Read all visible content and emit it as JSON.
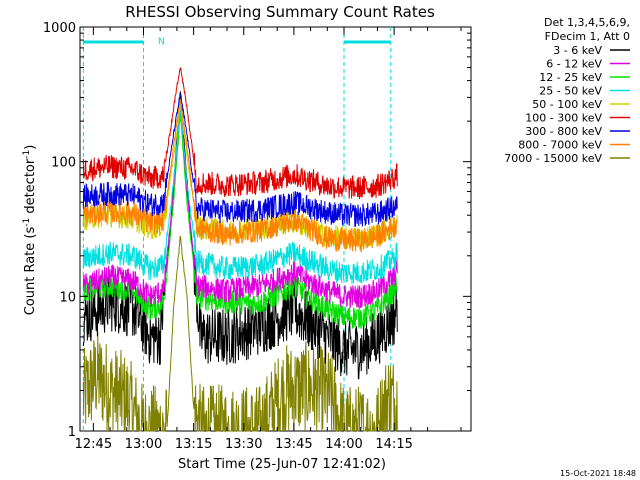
{
  "chart_data": {
    "type": "line",
    "title": "RHESSI Observing Summary Count Rates",
    "xlabel": "Start Time (25-Jun-07 12:41:02)",
    "ylabel_main": "Count Rate (s",
    "ylabel_exp1": "-1",
    "ylabel_mid": " detector",
    "ylabel_exp2": "-1",
    "ylabel_end": ")",
    "y_scale": "log",
    "ylim": [
      1,
      1000
    ],
    "xlim_minutes": [
      -19,
      98
    ],
    "x_ticks": [
      {
        "label": "12:45",
        "minute": -15
      },
      {
        "label": "13:00",
        "minute": 0
      },
      {
        "label": "13:15",
        "minute": 15
      },
      {
        "label": "13:30",
        "minute": 30
      },
      {
        "label": "13:45",
        "minute": 45
      },
      {
        "label": "14:00",
        "minute": 60
      },
      {
        "label": "14:15",
        "minute": 75
      }
    ],
    "y_ticks": [
      {
        "label": "1",
        "value": 1
      },
      {
        "label": "10",
        "value": 10
      },
      {
        "label": "100",
        "value": 100
      },
      {
        "label": "1000",
        "value": 1000
      }
    ],
    "legend_header": [
      "Det 1,3,4,5,6,9,",
      "FDecim 1, Att 0"
    ],
    "night_intervals": [
      {
        "start": -18,
        "end": 0,
        "flag": ""
      },
      {
        "start": 60,
        "end": 74,
        "flag": ""
      }
    ],
    "night_marker_label": "N",
    "flare_peak_minute": 11,
    "series": [
      {
        "name": "3 - 6 keV",
        "color": "#000000",
        "points": [
          [
            -18,
            7
          ],
          [
            -10,
            9
          ],
          [
            -3,
            8
          ],
          [
            2,
            5
          ],
          [
            5,
            5
          ],
          [
            8,
            30
          ],
          [
            11,
            330
          ],
          [
            14,
            35
          ],
          [
            17,
            5
          ],
          [
            25,
            5
          ],
          [
            35,
            6
          ],
          [
            45,
            8
          ],
          [
            55,
            5
          ],
          [
            60,
            4
          ],
          [
            65,
            4
          ],
          [
            70,
            5
          ],
          [
            75,
            7
          ],
          [
            76,
            9
          ]
        ]
      },
      {
        "name": "6 - 12 keV",
        "color": "#e000e0",
        "points": [
          [
            -18,
            12
          ],
          [
            -10,
            14
          ],
          [
            -3,
            13
          ],
          [
            2,
            10
          ],
          [
            6,
            11
          ],
          [
            9,
            60
          ],
          [
            11,
            290
          ],
          [
            13,
            60
          ],
          [
            16,
            12
          ],
          [
            25,
            11
          ],
          [
            35,
            12
          ],
          [
            45,
            15
          ],
          [
            55,
            11
          ],
          [
            60,
            10
          ],
          [
            65,
            10
          ],
          [
            70,
            11
          ],
          [
            75,
            14
          ],
          [
            76,
            16
          ]
        ]
      },
      {
        "name": "12 - 25 keV",
        "color": "#00e000",
        "points": [
          [
            -18,
            11
          ],
          [
            -10,
            12
          ],
          [
            -3,
            11
          ],
          [
            2,
            8
          ],
          [
            6,
            9
          ],
          [
            9,
            50
          ],
          [
            11,
            230
          ],
          [
            13,
            50
          ],
          [
            16,
            10
          ],
          [
            25,
            9
          ],
          [
            35,
            9
          ],
          [
            45,
            12
          ],
          [
            55,
            8
          ],
          [
            60,
            7
          ],
          [
            65,
            7
          ],
          [
            70,
            8
          ],
          [
            75,
            11
          ],
          [
            76,
            13
          ]
        ]
      },
      {
        "name": "25 - 50 keV",
        "color": "#00e0e0",
        "points": [
          [
            -18,
            19
          ],
          [
            -10,
            21
          ],
          [
            -3,
            20
          ],
          [
            2,
            16
          ],
          [
            6,
            17
          ],
          [
            9,
            70
          ],
          [
            11,
            250
          ],
          [
            13,
            70
          ],
          [
            16,
            18
          ],
          [
            25,
            16
          ],
          [
            35,
            17
          ],
          [
            45,
            21
          ],
          [
            55,
            16
          ],
          [
            60,
            15
          ],
          [
            65,
            15
          ],
          [
            70,
            16
          ],
          [
            75,
            19
          ],
          [
            76,
            22
          ]
        ]
      },
      {
        "name": "50 - 100 keV",
        "color": "#d0d000",
        "points": [
          [
            -18,
            38
          ],
          [
            -10,
            40
          ],
          [
            -3,
            38
          ],
          [
            2,
            32
          ],
          [
            6,
            34
          ],
          [
            9,
            110
          ],
          [
            11,
            270
          ],
          [
            13,
            110
          ],
          [
            16,
            33
          ],
          [
            25,
            30
          ],
          [
            35,
            32
          ],
          [
            45,
            36
          ],
          [
            55,
            28
          ],
          [
            60,
            27
          ],
          [
            65,
            27
          ],
          [
            70,
            29
          ],
          [
            75,
            33
          ],
          [
            76,
            35
          ]
        ]
      },
      {
        "name": "100 - 300 keV",
        "color": "#e00000",
        "points": [
          [
            -18,
            87
          ],
          [
            -10,
            92
          ],
          [
            -3,
            88
          ],
          [
            2,
            75
          ],
          [
            6,
            78
          ],
          [
            9,
            250
          ],
          [
            11,
            520
          ],
          [
            13,
            250
          ],
          [
            16,
            70
          ],
          [
            25,
            67
          ],
          [
            35,
            70
          ],
          [
            45,
            80
          ],
          [
            55,
            66
          ],
          [
            60,
            64
          ],
          [
            65,
            64
          ],
          [
            70,
            66
          ],
          [
            75,
            76
          ],
          [
            76,
            80
          ]
        ]
      },
      {
        "name": "300 - 800 keV",
        "color": "#0000e0",
        "points": [
          [
            -18,
            55
          ],
          [
            -10,
            58
          ],
          [
            -3,
            56
          ],
          [
            2,
            48
          ],
          [
            6,
            50
          ],
          [
            9,
            160
          ],
          [
            11,
            320
          ],
          [
            13,
            160
          ],
          [
            16,
            45
          ],
          [
            25,
            42
          ],
          [
            35,
            44
          ],
          [
            45,
            50
          ],
          [
            55,
            42
          ],
          [
            60,
            40
          ],
          [
            65,
            40
          ],
          [
            70,
            41
          ],
          [
            75,
            46
          ],
          [
            76,
            48
          ]
        ]
      },
      {
        "name": "800 - 7000 keV",
        "color": "#ff8000",
        "points": [
          [
            -18,
            40
          ],
          [
            -10,
            43
          ],
          [
            -3,
            41
          ],
          [
            2,
            35
          ],
          [
            6,
            37
          ],
          [
            9,
            130
          ],
          [
            11,
            300
          ],
          [
            13,
            130
          ],
          [
            16,
            32
          ],
          [
            25,
            29
          ],
          [
            35,
            31
          ],
          [
            45,
            37
          ],
          [
            55,
            27
          ],
          [
            60,
            26
          ],
          [
            65,
            26
          ],
          [
            70,
            28
          ],
          [
            75,
            33
          ],
          [
            76,
            36
          ]
        ]
      },
      {
        "name": "7000 - 15000 keV",
        "color": "#808000",
        "points": [
          [
            -18,
            1.8
          ],
          [
            -14,
            2.6
          ],
          [
            -10,
            2
          ],
          [
            -5,
            1.7
          ],
          [
            0,
            1
          ],
          [
            7,
            1
          ],
          [
            9,
            8
          ],
          [
            11,
            28
          ],
          [
            13,
            10
          ],
          [
            15,
            1.5
          ],
          [
            17,
            1
          ],
          [
            35,
            1
          ],
          [
            42,
            2
          ],
          [
            50,
            2.1
          ],
          [
            56,
            1.8
          ],
          [
            60,
            1
          ],
          [
            70,
            1
          ],
          [
            73,
            1.8
          ],
          [
            76,
            1.6
          ]
        ]
      }
    ]
  },
  "timestamp": "15-Oct-2021 18:48"
}
